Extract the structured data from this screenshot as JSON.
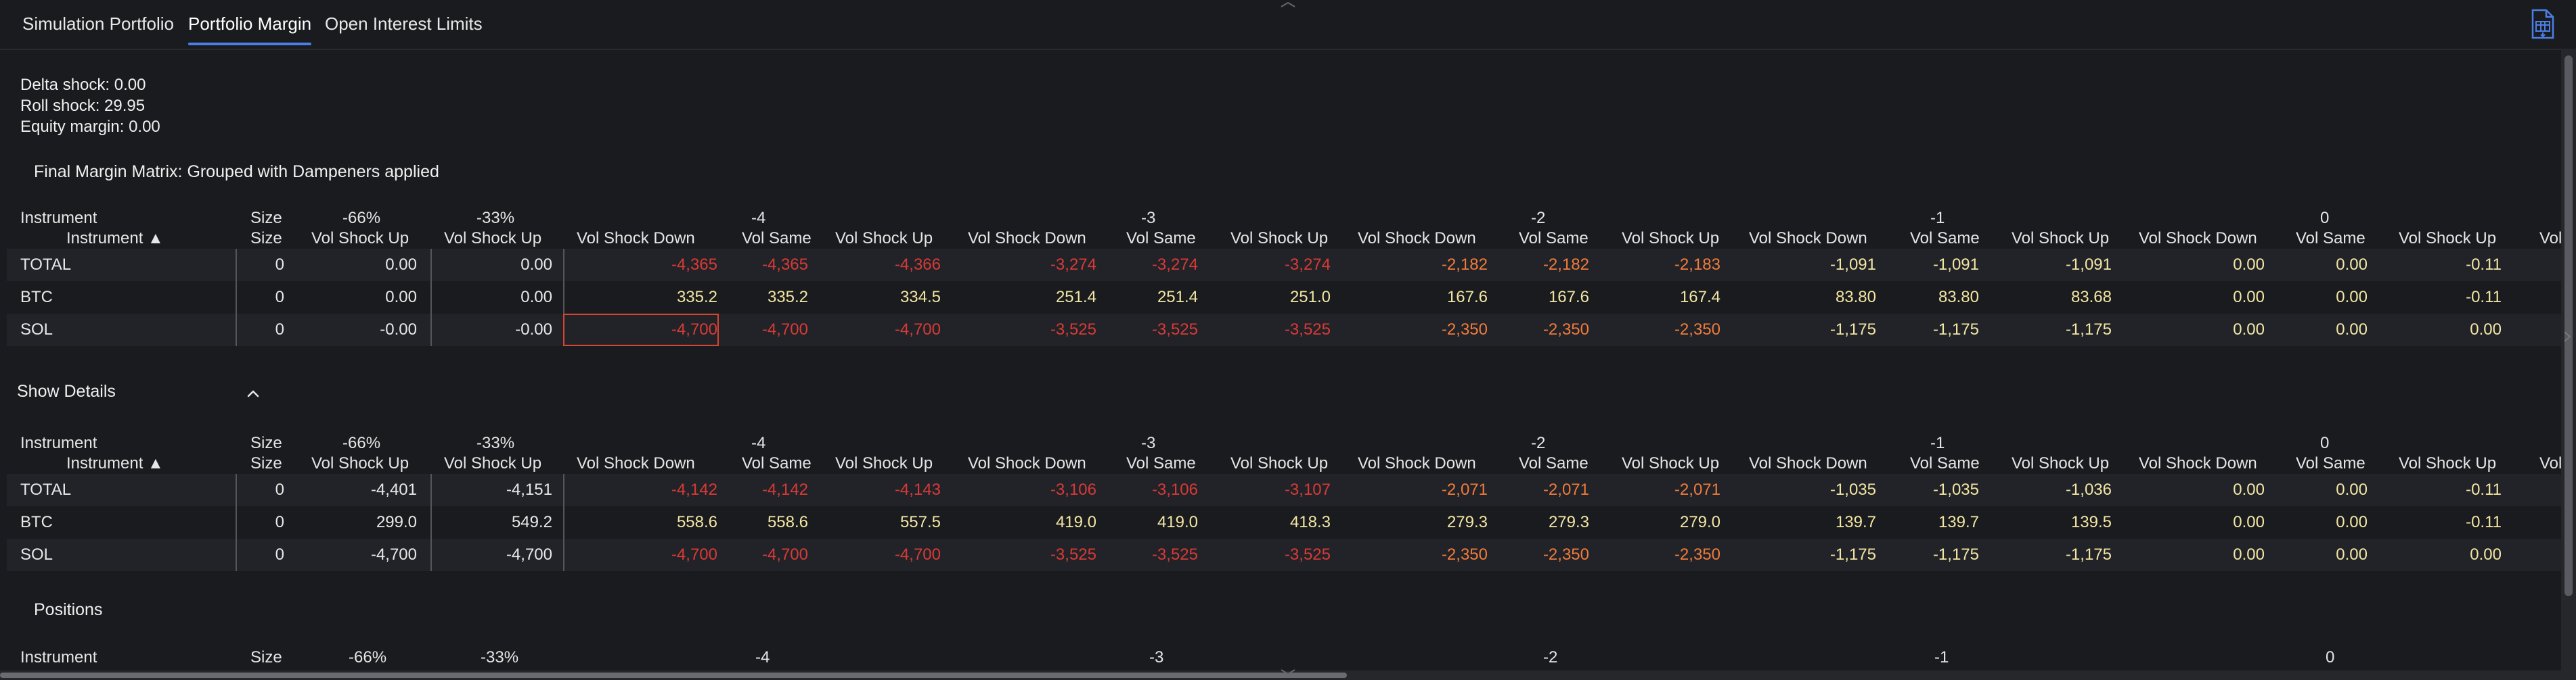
{
  "tabs": [
    {
      "label": "Simulation Portfolio",
      "active": false
    },
    {
      "label": "Portfolio Margin",
      "active": true
    },
    {
      "label": "Open Interest Limits",
      "active": false
    }
  ],
  "export_icon": "spreadsheet-export-icon",
  "info": {
    "delta_shock": "Delta shock: 0.00",
    "roll_shock": "Roll shock: 29.95",
    "equity_margin": "Equity margin: 0.00"
  },
  "final_title": "Final Margin Matrix: Grouped with Dampeners applied",
  "show_details": {
    "label": "Show Details",
    "icon": "chevron-up-icon"
  },
  "positions_title": "Positions",
  "header_groups": [
    "Instrument",
    "Size",
    "-66%",
    "-33%",
    "-4",
    "-3",
    "-2",
    "-1",
    "0"
  ],
  "header_cols": [
    "Instrument ▲",
    "Size",
    "Vol Shock Up",
    "Vol Shock Up",
    "Vol Shock Down",
    "Vol Same",
    "Vol Shock Up",
    "Vol Shock Down",
    "Vol Same",
    "Vol Shock Up",
    "Vol Shock Down",
    "Vol Same",
    "Vol Shock Up",
    "Vol Shock Down",
    "Vol Same",
    "Vol Shock Up",
    "Vol Shock Down",
    "Vol Same",
    "Vol Shock Up",
    "Vol S"
  ],
  "tables": [
    {
      "rows": [
        {
          "name": "TOTAL",
          "values": [
            "0",
            "0.00",
            "0.00",
            "-4,365",
            "-4,365",
            "-4,366",
            "-3,274",
            "-3,274",
            "-3,274",
            "-2,182",
            "-2,182",
            "-2,183",
            "-1,091",
            "-1,091",
            "-1,091",
            "0.00",
            "0.00",
            "-0.11"
          ]
        },
        {
          "name": "BTC",
          "values": [
            "0",
            "0.00",
            "0.00",
            "335.2",
            "335.2",
            "334.5",
            "251.4",
            "251.4",
            "251.0",
            "167.6",
            "167.6",
            "167.4",
            "83.80",
            "83.80",
            "83.68",
            "0.00",
            "0.00",
            "-0.11"
          ]
        },
        {
          "name": "SOL",
          "values": [
            "0",
            "-0.00",
            "-0.00",
            "-4,700",
            "-4,700",
            "-4,700",
            "-3,525",
            "-3,525",
            "-3,525",
            "-2,350",
            "-2,350",
            "-2,350",
            "-1,175",
            "-1,175",
            "-1,175",
            "0.00",
            "0.00",
            "0.00"
          ]
        }
      ]
    },
    {
      "rows": [
        {
          "name": "TOTAL",
          "values": [
            "0",
            "-4,401",
            "-4,151",
            "-4,142",
            "-4,142",
            "-4,143",
            "-3,106",
            "-3,106",
            "-3,107",
            "-2,071",
            "-2,071",
            "-2,071",
            "-1,035",
            "-1,035",
            "-1,036",
            "0.00",
            "0.00",
            "-0.11"
          ]
        },
        {
          "name": "BTC",
          "values": [
            "0",
            "299.0",
            "549.2",
            "558.6",
            "558.6",
            "557.5",
            "419.0",
            "419.0",
            "418.3",
            "279.3",
            "279.3",
            "279.0",
            "139.7",
            "139.7",
            "139.5",
            "0.00",
            "0.00",
            "-0.11"
          ]
        },
        {
          "name": "SOL",
          "values": [
            "0",
            "-4,700",
            "-4,700",
            "-4,700",
            "-4,700",
            "-4,700",
            "-3,525",
            "-3,525",
            "-3,525",
            "-2,350",
            "-2,350",
            "-2,350",
            "-1,175",
            "-1,175",
            "-1,175",
            "0.00",
            "0.00",
            "0.00"
          ]
        }
      ]
    }
  ],
  "positions_header_groups": [
    "Instrument",
    "Size",
    "-66%",
    "-33%",
    "-4",
    "-3",
    "-2",
    "-1",
    "0"
  ],
  "colors": {
    "background": "#1a1b1e",
    "negative_large": "#d83a36",
    "negative_mid": "#ef7b3b",
    "positive": "#f3e6a4",
    "neutral": "#e8e8e8",
    "tab_underline": "#4a7fe8",
    "selection_border": "#d8452e"
  }
}
